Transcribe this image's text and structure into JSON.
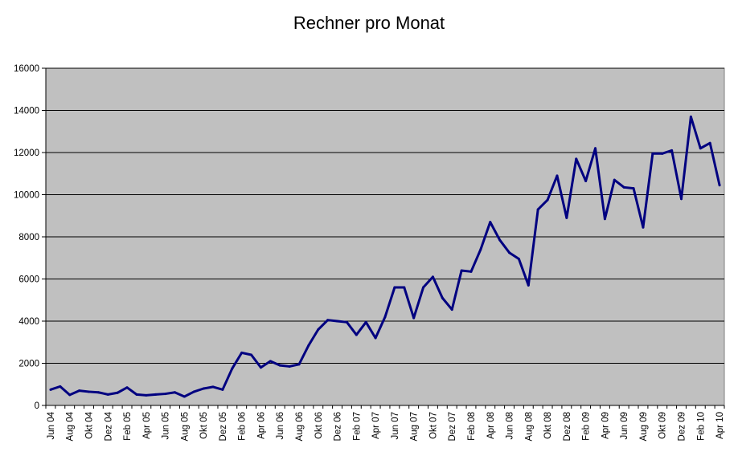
{
  "chart_data": {
    "type": "line",
    "title": "Rechner pro Monat",
    "xlabel": "",
    "ylabel": "",
    "ylim": [
      0,
      16000
    ],
    "yticks": [
      0,
      2000,
      4000,
      6000,
      8000,
      10000,
      12000,
      14000,
      16000
    ],
    "grid": true,
    "legend": "none",
    "colors": {
      "line": "#000080",
      "plot_bg": "#c0c0c0",
      "grid": "#000000"
    },
    "x": [
      "Jun 04",
      "Jul 04",
      "Aug 04",
      "Sep 04",
      "Okt 04",
      "Nov 04",
      "Dez 04",
      "Jan 05",
      "Feb 05",
      "Mär 05",
      "Apr 05",
      "Mai 05",
      "Jun 05",
      "Jul 05",
      "Aug 05",
      "Sep 05",
      "Okt 05",
      "Nov 05",
      "Dez 05",
      "Jan 06",
      "Feb 06",
      "Mär 06",
      "Apr 06",
      "Mai 06",
      "Jun 06",
      "Jul 06",
      "Aug 06",
      "Sep 06",
      "Okt 06",
      "Nov 06",
      "Dez 06",
      "Jan 07",
      "Feb 07",
      "Mär 07",
      "Apr 07",
      "Mai 07",
      "Jun 07",
      "Jul 07",
      "Aug 07",
      "Sep 07",
      "Okt 07",
      "Nov 07",
      "Dez 07",
      "Jan 08",
      "Feb 08",
      "Mär 08",
      "Apr 08",
      "Mai 08",
      "Jun 08",
      "Jul 08",
      "Aug 08",
      "Sep 08",
      "Okt 08",
      "Nov 08",
      "Dez 08",
      "Jan 09",
      "Feb 09",
      "Mär 09",
      "Apr 09",
      "Mai 09",
      "Jun 09",
      "Jul 09",
      "Aug 09",
      "Sep 09",
      "Okt 09",
      "Nov 09",
      "Dez 09",
      "Jan 10",
      "Feb 10",
      "Mär 10",
      "Apr 10"
    ],
    "xtick_labels": [
      "Jun 04",
      "Aug 04",
      "Okt 04",
      "Dez 04",
      "Feb 05",
      "Apr 05",
      "Jun 05",
      "Aug 05",
      "Okt 05",
      "Dez 05",
      "Feb 06",
      "Apr 06",
      "Jun 06",
      "Aug 06",
      "Okt 06",
      "Dez 06",
      "Feb 07",
      "Apr 07",
      "Jun 07",
      "Aug 07",
      "Okt 07",
      "Dez 07",
      "Feb 08",
      "Apr 08",
      "Jun 08",
      "Aug 08",
      "Okt 08",
      "Dez 08",
      "Feb 09",
      "Apr 09",
      "Jun 09",
      "Aug 09",
      "Okt 09",
      "Dez 09",
      "Feb 10",
      "Apr 10"
    ],
    "series": [
      {
        "values": [
          750,
          900,
          500,
          700,
          650,
          620,
          520,
          600,
          850,
          520,
          480,
          520,
          550,
          620,
          420,
          650,
          800,
          880,
          750,
          1750,
          2500,
          2400,
          1800,
          2100,
          1900,
          1850,
          1950,
          2850,
          3600,
          4050,
          4000,
          3950,
          3350,
          3950,
          3200,
          4200,
          5600,
          5600,
          4150,
          5600,
          6100,
          5100,
          4550,
          6400,
          6350,
          7400,
          8700,
          7850,
          7250,
          6950,
          5700,
          9300,
          9750,
          10900,
          8900,
          11700,
          10650,
          12200,
          8850,
          10700,
          10350,
          10300,
          8450,
          11950,
          11950,
          12100,
          9800,
          13700,
          12200,
          12450,
          10450
        ]
      }
    ]
  }
}
